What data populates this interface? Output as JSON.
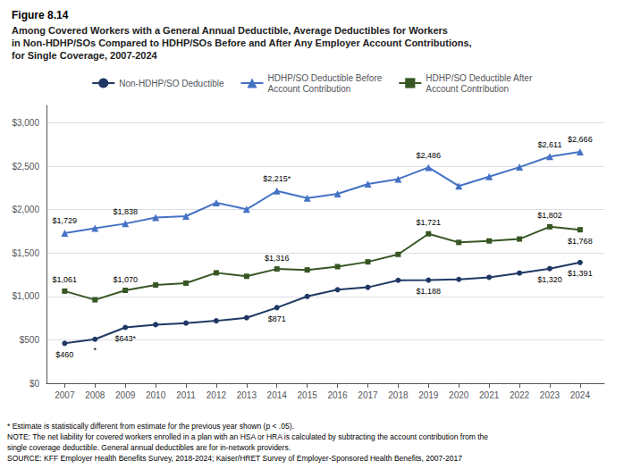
{
  "chart_data": {
    "type": "line",
    "title": "Figure 8.14",
    "subtitle": "Among Covered Workers with a General Annual Deductible, Average Deductibles for Workers\nin Non-HDHP/SOs Compared to HDHP/SOs Before and After Any Employer Account Contributions,\nfor Single Coverage, 2007-2024",
    "x": [
      2007,
      2008,
      2009,
      2010,
      2011,
      2012,
      2013,
      2014,
      2015,
      2016,
      2017,
      2018,
      2019,
      2020,
      2021,
      2022,
      2023,
      2024
    ],
    "xlim": [
      2006.4,
      2024.8
    ],
    "xticks": [
      2007,
      2008,
      2009,
      2010,
      2011,
      2012,
      2013,
      2014,
      2015,
      2016,
      2017,
      2018,
      2019,
      2020,
      2021,
      2022,
      2023,
      2024
    ],
    "ylim": [
      0,
      3200
    ],
    "yticks": [
      {
        "value": 0,
        "label": "$0"
      },
      {
        "value": 500,
        "label": "$500"
      },
      {
        "value": 1000,
        "label": "$1,000"
      },
      {
        "value": 1500,
        "label": "$1,500"
      },
      {
        "value": 2000,
        "label": "$2,000"
      },
      {
        "value": 2500,
        "label": "$2,500"
      },
      {
        "value": 3000,
        "label": "$3,000"
      }
    ],
    "grid": true,
    "legend": "top",
    "series": [
      {
        "name": "Non-HDHP/SO Deductible",
        "color": "#1f3864",
        "marker": "circle",
        "values": [
          460,
          507,
          643,
          675,
          693,
          719,
          754,
          871,
          1000,
          1077,
          1105,
          1186,
          1188,
          1196,
          1220,
          1269,
          1320,
          1391
        ],
        "value_labels": [
          "$460",
          "*",
          "$643*",
          null,
          null,
          null,
          null,
          "$871",
          null,
          null,
          null,
          null,
          "$1,188",
          null,
          null,
          null,
          "$1,320",
          "$1,391"
        ]
      },
      {
        "name": "HDHP/SO Deductible Before\nAccount Contribution",
        "color": "#4472c4",
        "marker": "triangle",
        "values": [
          1729,
          1786,
          1838,
          1909,
          1924,
          2079,
          2003,
          2215,
          2133,
          2181,
          2295,
          2352,
          2486,
          2272,
          2379,
          2489,
          2611,
          2666
        ],
        "value_labels": [
          "$1,729",
          null,
          "$1,838",
          null,
          null,
          null,
          null,
          "$2,215*",
          null,
          null,
          null,
          null,
          "$2,486",
          null,
          null,
          null,
          "$2,611",
          "$2,666"
        ]
      },
      {
        "name": "HDHP/SO Deductible After\nAccount Contribution",
        "color": "#375623",
        "marker": "square",
        "values": [
          1061,
          961,
          1070,
          1131,
          1153,
          1272,
          1232,
          1316,
          1305,
          1343,
          1398,
          1484,
          1721,
          1622,
          1639,
          1661,
          1802,
          1768
        ],
        "value_labels": [
          "$1,061",
          null,
          "$1,070",
          null,
          null,
          null,
          null,
          "$1,316",
          null,
          null,
          null,
          null,
          "$1,721",
          null,
          null,
          null,
          "$1,802",
          "$1,768"
        ]
      }
    ],
    "footnotes": [
      "* Estimate is statistically different from estimate for the previous year shown (p < .05).",
      "NOTE: The net liability for covered workers enrolled in a plan with an HSA or HRA is calculated by subtracting the account contribution from the",
      "single coverage deductible. General annual deductibles are for in-network providers.",
      "SOURCE: KFF Employer Health Benefits Survey, 2018-2024; Kaiser/HRET Survey of Employer-Sponsored Health Benefits, 2007-2017"
    ]
  }
}
